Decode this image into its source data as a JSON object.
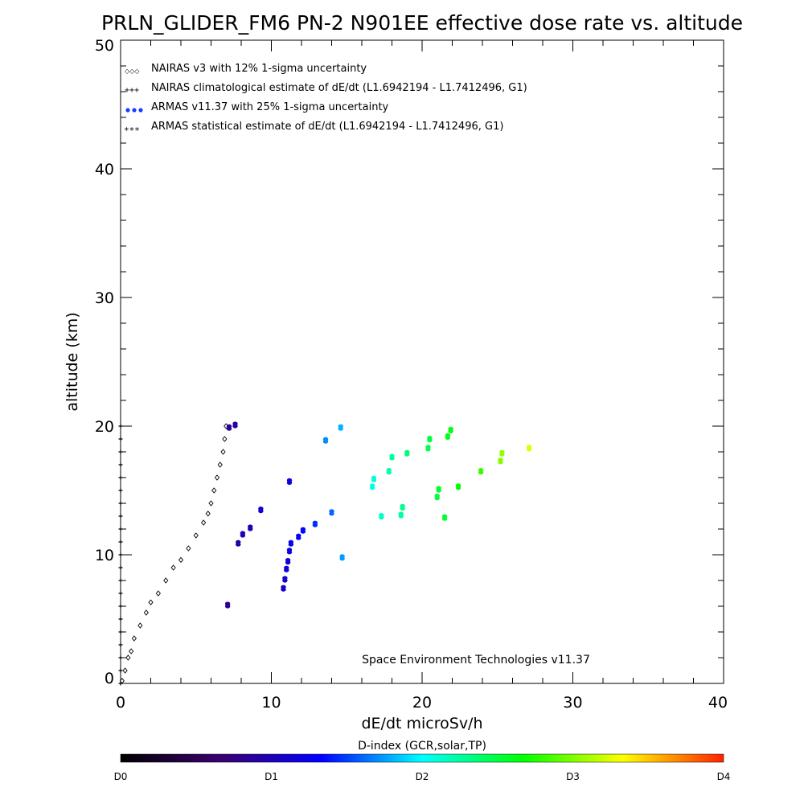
{
  "chart_data": {
    "type": "scatter",
    "title": "PRLN_GLIDER_FM6 PN-2 N901EE effective dose rate vs. altitude",
    "xlabel": "dE/dt microSv/h",
    "ylabel": "altitude (km)",
    "xlim": [
      0,
      40
    ],
    "ylim": [
      0,
      50
    ],
    "x_ticks": [
      "0",
      "10",
      "20",
      "30",
      "40"
    ],
    "y_ticks": [
      "0",
      "10",
      "20",
      "30",
      "40",
      "50"
    ],
    "legend_position": "top-left",
    "legend": [
      "NAIRAS v3 with 12% 1-sigma uncertainty",
      "NAIRAS climatological estimate of dE/dt (L1.6942194 - L1.7412496, G1)",
      "ARMAS v11.37 with 25% 1-sigma uncertainty",
      "ARMAS statistical estimate of dE/dt (L1.6942194 - L1.7412496, G1)"
    ],
    "credit": "Space Environment Technologies v11.37",
    "colorbar": {
      "title": "D-index (GCR,solar,TP)",
      "ticks": [
        {
          "label": "D0",
          "value": 0
        },
        {
          "label": "D1",
          "value": 1
        },
        {
          "label": "D2",
          "value": 2
        },
        {
          "label": "D3",
          "value": 3
        },
        {
          "label": "D4",
          "value": 4
        }
      ],
      "colors": [
        "#000000",
        "#3b0070",
        "#0000ff",
        "#00ffff",
        "#00ff00",
        "#ffff00",
        "#ff2000"
      ]
    },
    "series": [
      {
        "name": "NAIRAS v3 with 12% 1-sigma uncertainty",
        "marker": "diamond",
        "color": "#000000",
        "x": [
          0.1,
          0.3,
          0.5,
          0.7,
          0.9,
          1.3,
          1.7,
          2.0,
          2.5,
          3.0,
          3.5,
          4.0,
          4.5,
          5.0,
          5.5,
          5.8,
          6.0,
          6.2,
          6.4,
          6.6,
          6.8,
          6.9,
          7.0
        ],
        "y": [
          0.2,
          1.0,
          2.0,
          2.5,
          3.5,
          4.5,
          5.5,
          6.3,
          7.0,
          8.0,
          9.0,
          9.6,
          10.5,
          11.5,
          12.5,
          13.2,
          14.0,
          15.0,
          16.0,
          17.0,
          18.0,
          19.0,
          20.0
        ]
      },
      {
        "name": "NAIRAS climatological estimate of dE/dt (L1.6942194 - L1.7412496, G1)",
        "marker": "plus",
        "color": "#000000",
        "x": [
          0,
          0,
          0,
          0,
          0,
          0,
          0,
          0,
          0,
          0,
          0,
          0,
          0,
          0,
          0,
          0,
          0,
          0,
          0,
          0,
          0
        ],
        "y": [
          0,
          1,
          2,
          3,
          4,
          5,
          6,
          7,
          8,
          9,
          10,
          11,
          12,
          13,
          14,
          15,
          16,
          17,
          18,
          19,
          20
        ]
      },
      {
        "name": "ARMAS v11.37 with 25% 1-sigma uncertainty",
        "marker": "dot",
        "x": [
          7.1,
          7.2,
          7.6,
          7.8,
          8.1,
          8.6,
          9.3,
          10.8,
          10.9,
          11.0,
          11.1,
          11.2,
          11.3,
          11.2,
          11.8,
          12.1,
          12.9,
          13.6,
          14.0,
          14.6,
          14.7,
          16.7,
          16.8,
          17.3,
          17.8,
          18.0,
          18.6,
          18.7,
          19.0,
          20.4,
          20.5,
          21.0,
          21.1,
          21.5,
          21.7,
          21.9,
          22.4,
          23.9,
          25.2,
          25.3,
          27.1
        ],
        "y": [
          6.0,
          19.8,
          20.0,
          10.8,
          11.5,
          12.0,
          13.4,
          7.3,
          8.0,
          8.8,
          9.4,
          10.2,
          10.8,
          15.6,
          11.3,
          11.8,
          12.3,
          18.8,
          13.2,
          19.8,
          9.7,
          15.2,
          15.8,
          12.9,
          16.4,
          17.5,
          13.0,
          13.6,
          17.8,
          18.2,
          18.9,
          14.4,
          15.0,
          12.8,
          19.1,
          19.6,
          15.2,
          16.4,
          17.2,
          17.8,
          18.2
        ],
        "dindex": [
          0.85,
          0.85,
          0.9,
          0.9,
          1.0,
          1.0,
          1.1,
          1.1,
          1.1,
          1.15,
          1.15,
          1.2,
          1.2,
          1.2,
          1.3,
          1.35,
          1.45,
          1.7,
          1.6,
          1.8,
          1.75,
          2.05,
          2.1,
          2.15,
          2.2,
          2.25,
          2.25,
          2.3,
          2.35,
          2.45,
          2.5,
          2.5,
          2.55,
          2.55,
          2.6,
          2.6,
          2.65,
          2.8,
          3.0,
          3.05,
          3.25
        ]
      },
      {
        "name": "ARMAS statistical estimate of dE/dt (L1.6942194 - L1.7412496, G1)",
        "marker": "asterisk",
        "color": "#000000",
        "x": [],
        "y": []
      }
    ]
  }
}
